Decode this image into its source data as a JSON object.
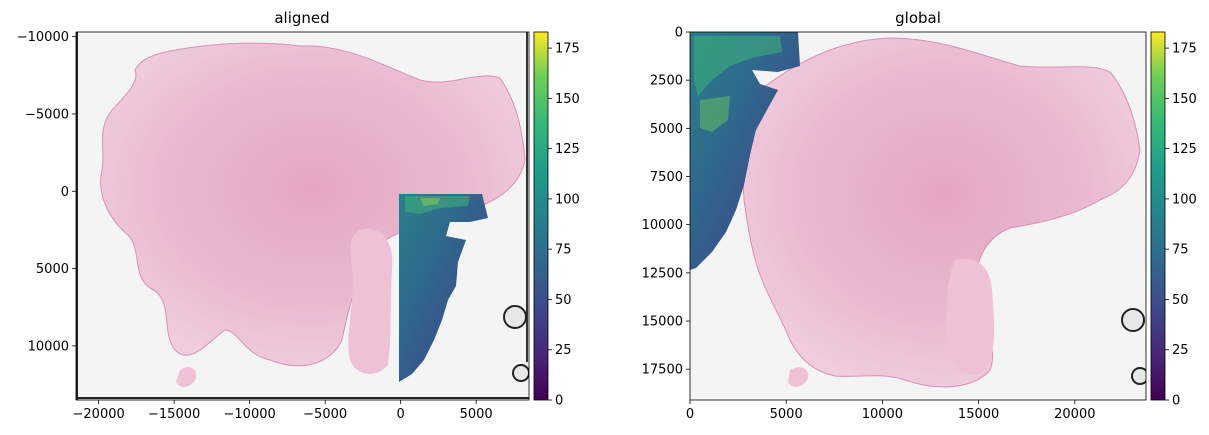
{
  "chart_data": [
    {
      "type": "heatmap",
      "title": "aligned",
      "x_ticks": [
        "−20000",
        "−15000",
        "−10000",
        "−5000",
        "0",
        "5000"
      ],
      "y_ticks": [
        "−10000",
        "−5000",
        "0",
        "5000",
        "10000"
      ],
      "xlim": [
        -21500,
        8500
      ],
      "ylim": [
        13500,
        -10300
      ],
      "colorbar": {
        "colormap": "viridis",
        "range": [
          0,
          183
        ],
        "ticks": [
          "0",
          "25",
          "50",
          "75",
          "100",
          "125",
          "150",
          "175"
        ]
      },
      "images": [
        {
          "kind": "H&E tissue section",
          "extent": [
            -21500,
            8500,
            13500,
            -10300
          ]
        },
        {
          "kind": "viridis intensity overlay",
          "extent": [
            0,
            5800,
            12300,
            0
          ]
        }
      ]
    },
    {
      "type": "heatmap",
      "title": "global",
      "x_ticks": [
        "0",
        "5000",
        "10000",
        "15000",
        "20000"
      ],
      "y_ticks": [
        "0",
        "2500",
        "5000",
        "7500",
        "10000",
        "12500",
        "15000",
        "17500"
      ],
      "xlim": [
        0,
        23700
      ],
      "ylim": [
        19100,
        0
      ],
      "colorbar": {
        "colormap": "viridis",
        "range": [
          0,
          183
        ],
        "ticks": [
          "0",
          "25",
          "50",
          "75",
          "100",
          "125",
          "150",
          "175"
        ]
      },
      "images": [
        {
          "kind": "H&E tissue section",
          "extent": [
            0,
            23700,
            19100,
            0
          ]
        },
        {
          "kind": "viridis intensity overlay",
          "extent": [
            0,
            5800,
            12300,
            0
          ]
        }
      ]
    }
  ]
}
